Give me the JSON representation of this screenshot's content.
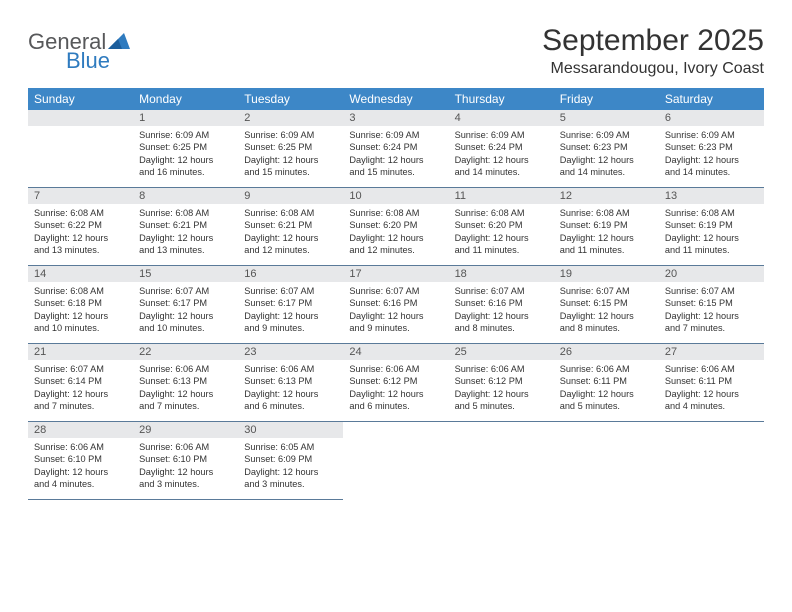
{
  "logo": {
    "general": "General",
    "blue": "Blue"
  },
  "header": {
    "month_title": "September 2025",
    "location": "Messarandougou, Ivory Coast"
  },
  "calendar": {
    "type": "calendar-grid",
    "columns": 7,
    "rows": 5,
    "header_bg": "#3d87c7",
    "header_fg": "#ffffff",
    "daynum_bg": "#e7e8ea",
    "daynum_fg": "#555555",
    "text_color": "#333333",
    "row_border_color": "#5a7a99",
    "font_size_body": 9.2,
    "font_size_head": 12,
    "weekdays": [
      "Sunday",
      "Monday",
      "Tuesday",
      "Wednesday",
      "Thursday",
      "Friday",
      "Saturday"
    ],
    "leading_blanks": 1,
    "days": [
      {
        "n": "1",
        "sunrise": "Sunrise: 6:09 AM",
        "sunset": "Sunset: 6:25 PM",
        "day1": "Daylight: 12 hours",
        "day2": "and 16 minutes."
      },
      {
        "n": "2",
        "sunrise": "Sunrise: 6:09 AM",
        "sunset": "Sunset: 6:25 PM",
        "day1": "Daylight: 12 hours",
        "day2": "and 15 minutes."
      },
      {
        "n": "3",
        "sunrise": "Sunrise: 6:09 AM",
        "sunset": "Sunset: 6:24 PM",
        "day1": "Daylight: 12 hours",
        "day2": "and 15 minutes."
      },
      {
        "n": "4",
        "sunrise": "Sunrise: 6:09 AM",
        "sunset": "Sunset: 6:24 PM",
        "day1": "Daylight: 12 hours",
        "day2": "and 14 minutes."
      },
      {
        "n": "5",
        "sunrise": "Sunrise: 6:09 AM",
        "sunset": "Sunset: 6:23 PM",
        "day1": "Daylight: 12 hours",
        "day2": "and 14 minutes."
      },
      {
        "n": "6",
        "sunrise": "Sunrise: 6:09 AM",
        "sunset": "Sunset: 6:23 PM",
        "day1": "Daylight: 12 hours",
        "day2": "and 14 minutes."
      },
      {
        "n": "7",
        "sunrise": "Sunrise: 6:08 AM",
        "sunset": "Sunset: 6:22 PM",
        "day1": "Daylight: 12 hours",
        "day2": "and 13 minutes."
      },
      {
        "n": "8",
        "sunrise": "Sunrise: 6:08 AM",
        "sunset": "Sunset: 6:21 PM",
        "day1": "Daylight: 12 hours",
        "day2": "and 13 minutes."
      },
      {
        "n": "9",
        "sunrise": "Sunrise: 6:08 AM",
        "sunset": "Sunset: 6:21 PM",
        "day1": "Daylight: 12 hours",
        "day2": "and 12 minutes."
      },
      {
        "n": "10",
        "sunrise": "Sunrise: 6:08 AM",
        "sunset": "Sunset: 6:20 PM",
        "day1": "Daylight: 12 hours",
        "day2": "and 12 minutes."
      },
      {
        "n": "11",
        "sunrise": "Sunrise: 6:08 AM",
        "sunset": "Sunset: 6:20 PM",
        "day1": "Daylight: 12 hours",
        "day2": "and 11 minutes."
      },
      {
        "n": "12",
        "sunrise": "Sunrise: 6:08 AM",
        "sunset": "Sunset: 6:19 PM",
        "day1": "Daylight: 12 hours",
        "day2": "and 11 minutes."
      },
      {
        "n": "13",
        "sunrise": "Sunrise: 6:08 AM",
        "sunset": "Sunset: 6:19 PM",
        "day1": "Daylight: 12 hours",
        "day2": "and 11 minutes."
      },
      {
        "n": "14",
        "sunrise": "Sunrise: 6:08 AM",
        "sunset": "Sunset: 6:18 PM",
        "day1": "Daylight: 12 hours",
        "day2": "and 10 minutes."
      },
      {
        "n": "15",
        "sunrise": "Sunrise: 6:07 AM",
        "sunset": "Sunset: 6:17 PM",
        "day1": "Daylight: 12 hours",
        "day2": "and 10 minutes."
      },
      {
        "n": "16",
        "sunrise": "Sunrise: 6:07 AM",
        "sunset": "Sunset: 6:17 PM",
        "day1": "Daylight: 12 hours",
        "day2": "and 9 minutes."
      },
      {
        "n": "17",
        "sunrise": "Sunrise: 6:07 AM",
        "sunset": "Sunset: 6:16 PM",
        "day1": "Daylight: 12 hours",
        "day2": "and 9 minutes."
      },
      {
        "n": "18",
        "sunrise": "Sunrise: 6:07 AM",
        "sunset": "Sunset: 6:16 PM",
        "day1": "Daylight: 12 hours",
        "day2": "and 8 minutes."
      },
      {
        "n": "19",
        "sunrise": "Sunrise: 6:07 AM",
        "sunset": "Sunset: 6:15 PM",
        "day1": "Daylight: 12 hours",
        "day2": "and 8 minutes."
      },
      {
        "n": "20",
        "sunrise": "Sunrise: 6:07 AM",
        "sunset": "Sunset: 6:15 PM",
        "day1": "Daylight: 12 hours",
        "day2": "and 7 minutes."
      },
      {
        "n": "21",
        "sunrise": "Sunrise: 6:07 AM",
        "sunset": "Sunset: 6:14 PM",
        "day1": "Daylight: 12 hours",
        "day2": "and 7 minutes."
      },
      {
        "n": "22",
        "sunrise": "Sunrise: 6:06 AM",
        "sunset": "Sunset: 6:13 PM",
        "day1": "Daylight: 12 hours",
        "day2": "and 7 minutes."
      },
      {
        "n": "23",
        "sunrise": "Sunrise: 6:06 AM",
        "sunset": "Sunset: 6:13 PM",
        "day1": "Daylight: 12 hours",
        "day2": "and 6 minutes."
      },
      {
        "n": "24",
        "sunrise": "Sunrise: 6:06 AM",
        "sunset": "Sunset: 6:12 PM",
        "day1": "Daylight: 12 hours",
        "day2": "and 6 minutes."
      },
      {
        "n": "25",
        "sunrise": "Sunrise: 6:06 AM",
        "sunset": "Sunset: 6:12 PM",
        "day1": "Daylight: 12 hours",
        "day2": "and 5 minutes."
      },
      {
        "n": "26",
        "sunrise": "Sunrise: 6:06 AM",
        "sunset": "Sunset: 6:11 PM",
        "day1": "Daylight: 12 hours",
        "day2": "and 5 minutes."
      },
      {
        "n": "27",
        "sunrise": "Sunrise: 6:06 AM",
        "sunset": "Sunset: 6:11 PM",
        "day1": "Daylight: 12 hours",
        "day2": "and 4 minutes."
      },
      {
        "n": "28",
        "sunrise": "Sunrise: 6:06 AM",
        "sunset": "Sunset: 6:10 PM",
        "day1": "Daylight: 12 hours",
        "day2": "and 4 minutes."
      },
      {
        "n": "29",
        "sunrise": "Sunrise: 6:06 AM",
        "sunset": "Sunset: 6:10 PM",
        "day1": "Daylight: 12 hours",
        "day2": "and 3 minutes."
      },
      {
        "n": "30",
        "sunrise": "Sunrise: 6:05 AM",
        "sunset": "Sunset: 6:09 PM",
        "day1": "Daylight: 12 hours",
        "day2": "and 3 minutes."
      }
    ]
  }
}
